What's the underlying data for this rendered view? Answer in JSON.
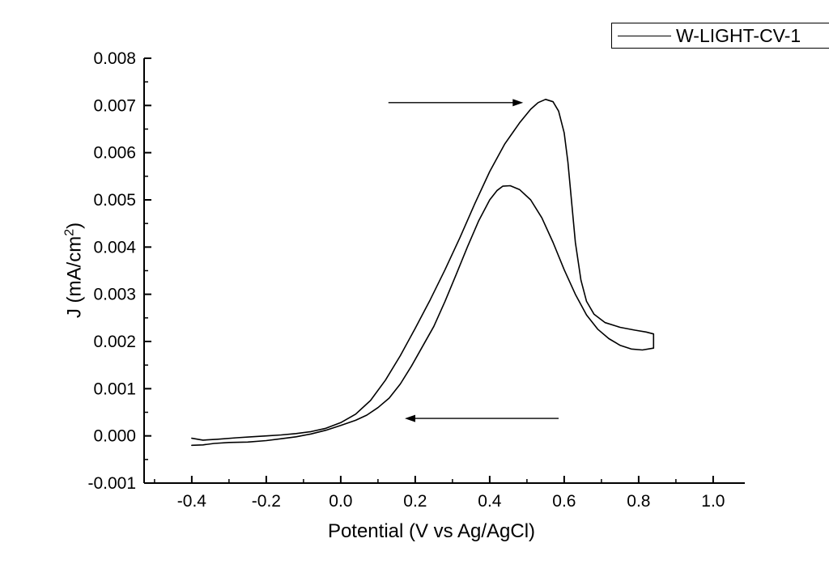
{
  "figure": {
    "background": "#ffffff",
    "line_color": "#000000"
  },
  "legend": {
    "label": "W-LIGHT-CV-1"
  },
  "axes": {
    "xlabel": "Potential (V vs Ag/AgCl)",
    "ylabel_pre": "J (mA/cm",
    "ylabel_sup": "2",
    "ylabel_post": ")"
  },
  "chart_data": {
    "type": "line",
    "title": "",
    "xlabel": "Potential (V vs Ag/AgCl)",
    "ylabel": "J (mA/cm^2)",
    "legend_position": "top-right",
    "grid": false,
    "xlim": [
      -0.528,
      1.085
    ],
    "ylim": [
      -0.001,
      0.008
    ],
    "x_ticks": [
      {
        "value": -0.4,
        "label": "-0.4"
      },
      {
        "value": -0.2,
        "label": "-0.2"
      },
      {
        "value": 0.0,
        "label": "0.0"
      },
      {
        "value": 0.2,
        "label": "0.2"
      },
      {
        "value": 0.4,
        "label": "0.4"
      },
      {
        "value": 0.6,
        "label": "0.6"
      },
      {
        "value": 0.8,
        "label": "0.8"
      },
      {
        "value": 1.0,
        "label": "1.0"
      }
    ],
    "x_minor_ticks": [
      -0.5,
      -0.3,
      -0.1,
      0.1,
      0.3,
      0.5,
      0.7,
      0.9
    ],
    "y_ticks": [
      {
        "value": -0.001,
        "label": "-0.001"
      },
      {
        "value": 0.0,
        "label": "0.000"
      },
      {
        "value": 0.001,
        "label": "0.001"
      },
      {
        "value": 0.002,
        "label": "0.002"
      },
      {
        "value": 0.003,
        "label": "0.003"
      },
      {
        "value": 0.004,
        "label": "0.004"
      },
      {
        "value": 0.005,
        "label": "0.005"
      },
      {
        "value": 0.006,
        "label": "0.006"
      },
      {
        "value": 0.007,
        "label": "0.007"
      },
      {
        "value": 0.008,
        "label": "0.008"
      }
    ],
    "y_minor_ticks": [
      -0.0005,
      0.0005,
      0.0015,
      0.0025,
      0.0035,
      0.0045,
      0.0055,
      0.0065,
      0.0075
    ],
    "series": [
      {
        "name": "W-LIGHT-CV-1",
        "points": [
          [
            -0.4,
            -5e-05
          ],
          [
            -0.37,
            -9e-05
          ],
          [
            -0.33,
            -7e-05
          ],
          [
            -0.28,
            -4e-05
          ],
          [
            -0.24,
            -2e-05
          ],
          [
            -0.2,
            0.0
          ],
          [
            -0.16,
            2e-05
          ],
          [
            -0.12,
            5e-05
          ],
          [
            -0.08,
            9e-05
          ],
          [
            -0.04,
            0.00016
          ],
          [
            0.0,
            0.00028
          ],
          [
            0.04,
            0.00046
          ],
          [
            0.08,
            0.00075
          ],
          [
            0.12,
            0.00118
          ],
          [
            0.16,
            0.0017
          ],
          [
            0.2,
            0.00228
          ],
          [
            0.24,
            0.00288
          ],
          [
            0.28,
            0.00352
          ],
          [
            0.32,
            0.0042
          ],
          [
            0.36,
            0.00492
          ],
          [
            0.4,
            0.0056
          ],
          [
            0.44,
            0.00618
          ],
          [
            0.48,
            0.00663
          ],
          [
            0.51,
            0.00692
          ],
          [
            0.53,
            0.00706
          ],
          [
            0.55,
            0.00713
          ],
          [
            0.57,
            0.00708
          ],
          [
            0.585,
            0.00688
          ],
          [
            0.6,
            0.00642
          ],
          [
            0.61,
            0.0058
          ],
          [
            0.62,
            0.00495
          ],
          [
            0.63,
            0.0041
          ],
          [
            0.645,
            0.0033
          ],
          [
            0.66,
            0.00285
          ],
          [
            0.68,
            0.00258
          ],
          [
            0.71,
            0.0024
          ],
          [
            0.75,
            0.0023
          ],
          [
            0.79,
            0.00224
          ],
          [
            0.82,
            0.0022
          ],
          [
            0.84,
            0.00216
          ],
          [
            0.84,
            0.00186
          ],
          [
            0.81,
            0.00182
          ],
          [
            0.78,
            0.00184
          ],
          [
            0.75,
            0.00192
          ],
          [
            0.72,
            0.00206
          ],
          [
            0.69,
            0.00226
          ],
          [
            0.66,
            0.00256
          ],
          [
            0.63,
            0.003
          ],
          [
            0.6,
            0.00352
          ],
          [
            0.57,
            0.0041
          ],
          [
            0.54,
            0.00462
          ],
          [
            0.51,
            0.005
          ],
          [
            0.48,
            0.00522
          ],
          [
            0.455,
            0.0053
          ],
          [
            0.435,
            0.00529
          ],
          [
            0.42,
            0.0052
          ],
          [
            0.4,
            0.005
          ],
          [
            0.37,
            0.00455
          ],
          [
            0.34,
            0.004
          ],
          [
            0.31,
            0.00342
          ],
          [
            0.28,
            0.00285
          ],
          [
            0.25,
            0.00232
          ],
          [
            0.22,
            0.0019
          ],
          [
            0.19,
            0.00148
          ],
          [
            0.16,
            0.0011
          ],
          [
            0.13,
            0.0008
          ],
          [
            0.1,
            0.0006
          ],
          [
            0.07,
            0.00044
          ],
          [
            0.04,
            0.00033
          ],
          [
            0.0,
            0.00022
          ],
          [
            -0.04,
            0.00012
          ],
          [
            -0.08,
            4e-05
          ],
          [
            -0.12,
            -2e-05
          ],
          [
            -0.16,
            -6e-05
          ],
          [
            -0.2,
            -0.0001
          ],
          [
            -0.25,
            -0.00013
          ],
          [
            -0.3,
            -0.00014
          ],
          [
            -0.34,
            -0.00016
          ],
          [
            -0.37,
            -0.00019
          ],
          [
            -0.4,
            -0.0002
          ]
        ]
      }
    ],
    "annotations": [
      {
        "type": "arrow",
        "direction": "right",
        "x_start": 0.128,
        "x_end": 0.49,
        "y": 0.00706
      },
      {
        "type": "arrow",
        "direction": "left",
        "x_start": 0.585,
        "x_end": 0.172,
        "y": 0.00037
      }
    ]
  }
}
